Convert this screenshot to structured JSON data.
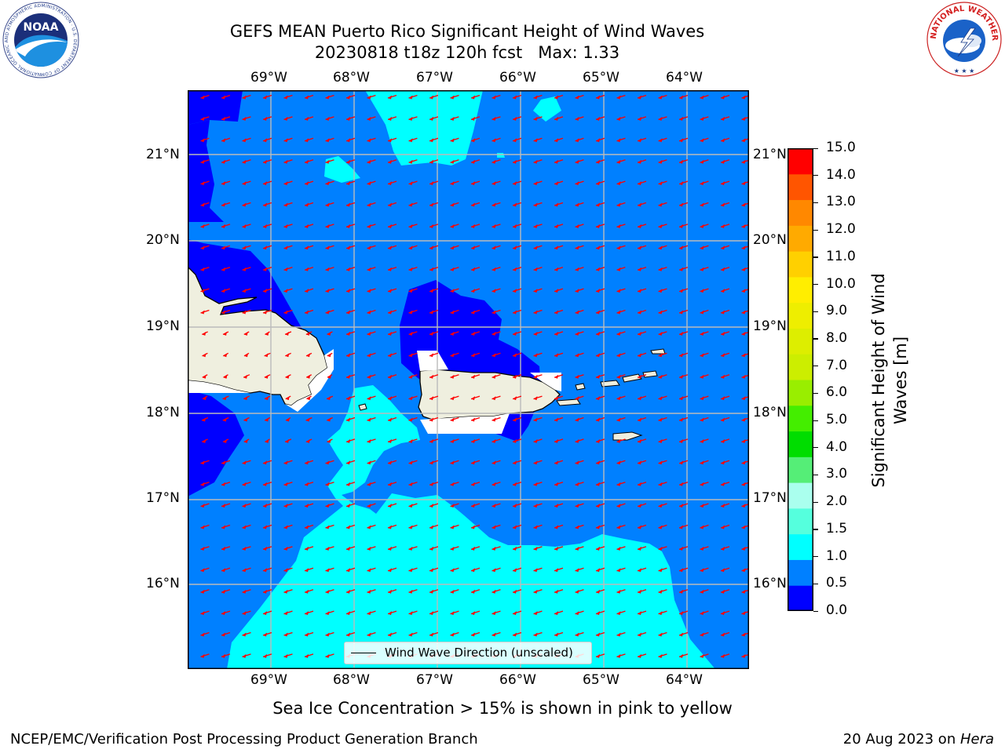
{
  "title": {
    "line1": "GEFS MEAN Puerto Rico Significant Height of Wind Waves",
    "line2": "20230818 t18z 120h fcst   Max: 1.33"
  },
  "logos": {
    "left": {
      "text": "NOAA",
      "ring_text": "NATIONAL OCEANIC AND ATMOSPHERIC ADMINISTRATION · U.S. DEPARTMENT OF COMMERCE"
    },
    "right": {
      "ring_text": "NATIONAL WEATHER SERVICE"
    }
  },
  "map": {
    "lon_labels": [
      "69°W",
      "68°W",
      "67°W",
      "66°W",
      "65°W",
      "64°W"
    ],
    "lat_labels": [
      "21°N",
      "20°N",
      "19°N",
      "18°N",
      "17°N",
      "16°N"
    ],
    "extent": {
      "lon": [
        -70.0,
        -63.25
      ],
      "lat": [
        15.0,
        21.75
      ]
    },
    "colors": {
      "below_0_5": "#0000ff",
      "from_0_5_to_1_0": "#0080ff",
      "from_1_0_to_1_5": "#00ffff",
      "land": "#efefdf",
      "arrow": "#ff0000",
      "grid": "#bbbbbb"
    },
    "wind_wave_direction": "toward west / west-southwest",
    "legend_label": "Wind Wave Direction (unscaled)"
  },
  "colorbar": {
    "label": "Significant Height of Wind Waves [m]",
    "ticks": [
      "15.0",
      "14.0",
      "13.0",
      "12.0",
      "11.0",
      "10.0",
      "9.0",
      "8.0",
      "7.0",
      "6.0",
      "5.0",
      "4.0",
      "3.0",
      "2.0",
      "1.5",
      "1.0",
      "0.5",
      "0.0"
    ],
    "colors_bottom_to_top": [
      "#0000ff",
      "#0080ff",
      "#00ffff",
      "#55ffdd",
      "#aaffee",
      "#55ee77",
      "#00dd00",
      "#44ee00",
      "#99ee00",
      "#ccee00",
      "#ddee00",
      "#eeee00",
      "#ffee00",
      "#ffd000",
      "#ffaa00",
      "#ff8800",
      "#ff5500",
      "#ff0000"
    ]
  },
  "note": "Sea Ice Concentration > 15% is shown in pink to yellow",
  "footer": {
    "left": "NCEP/EMC/Verification Post Processing Product Generation Branch",
    "right_prefix": "20 Aug 2023 on ",
    "right_system": "Hera"
  }
}
